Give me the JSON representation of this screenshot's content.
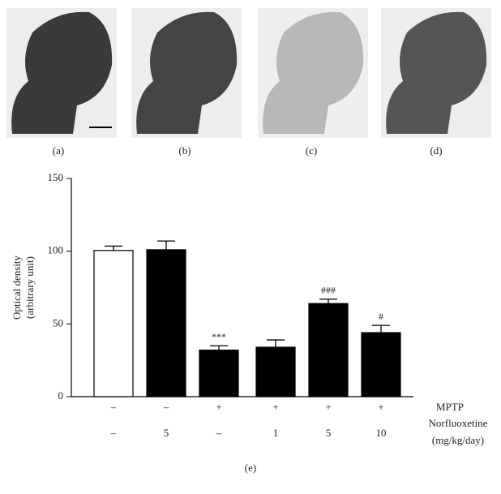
{
  "panels": [
    "(a)",
    "(b)",
    "(c)",
    "(d)"
  ],
  "chart_data": {
    "type": "bar",
    "panel": "(e)",
    "ylabel": [
      "Optical density",
      "(arbitrary unit)"
    ],
    "category_rows": [
      {
        "label": [
          "MPTP"
        ],
        "labels": [
          "–",
          "–",
          "+",
          "+",
          "+",
          "+"
        ]
      },
      {
        "label": [
          "Norfluoxetine",
          "(mg/kg/day)"
        ],
        "labels": [
          "–",
          "5",
          "–",
          "1",
          "5",
          "10"
        ]
      }
    ],
    "values": [
      100.5,
      101,
      32,
      34,
      64,
      44
    ],
    "errors": [
      3,
      6,
      3,
      5,
      3,
      5
    ],
    "value_annotations": [
      null,
      null,
      "***",
      null,
      "###",
      "#"
    ],
    "colors": [
      "#ffffff",
      "#000000",
      "#000000",
      "#000000",
      "#000000",
      "#000000"
    ],
    "ylim": [
      0,
      150
    ],
    "yticks": [
      0,
      50,
      100,
      150
    ]
  }
}
